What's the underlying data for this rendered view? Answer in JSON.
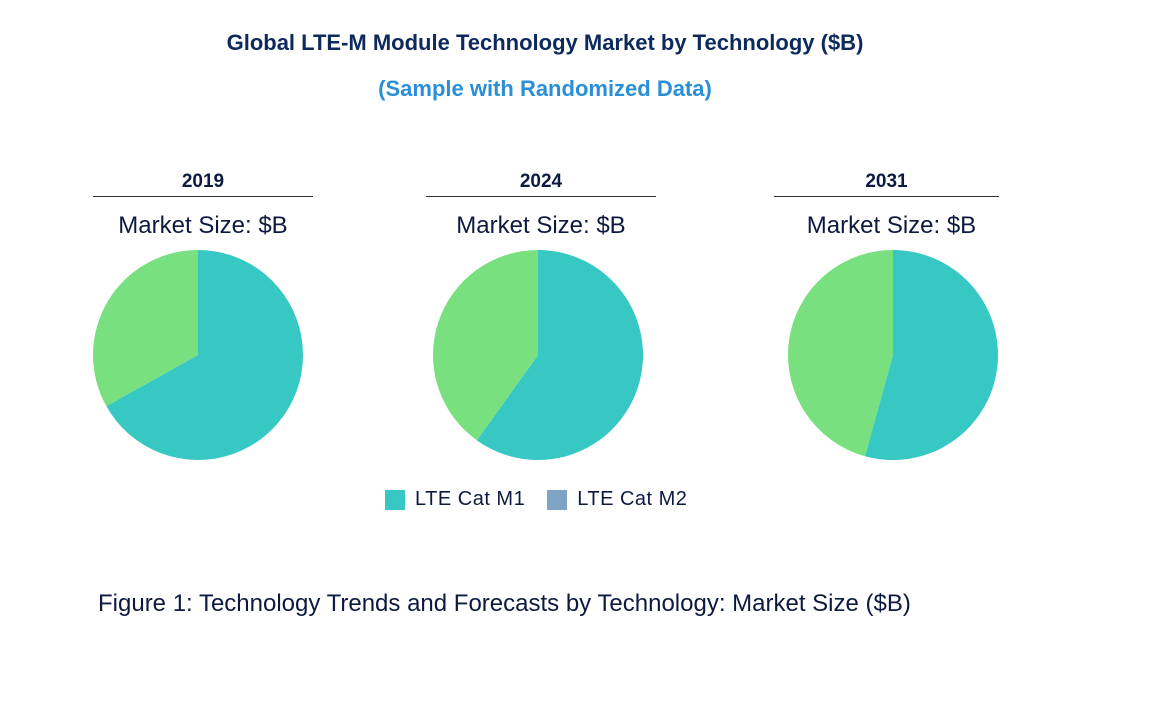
{
  "chart_data": {
    "type": "pie",
    "title": "Global LTE-M Module Technology Market by  Technology ($B)",
    "subtitle": "(Sample with Randomized Data)",
    "legend": [
      {
        "name": "LTE Cat M1",
        "color": "#37c8c4"
      },
      {
        "name": "LTE Cat M2",
        "color": "#7fa3c5"
      }
    ],
    "slice_colors": [
      "#37c8c4",
      "#79e07f"
    ],
    "pies": [
      {
        "year": "2019",
        "label": "Market Size: $B",
        "values": [
          66.9,
          33.1
        ]
      },
      {
        "year": "2024",
        "label": "Market Size: $B",
        "values": [
          59.9,
          40.1
        ]
      },
      {
        "year": "2031",
        "label": "Market Size: $B",
        "values": [
          54.3,
          45.7
        ]
      }
    ],
    "caption": "Figure 1: Technology Trends and Forecasts by Technology: Market Size ($B)"
  }
}
